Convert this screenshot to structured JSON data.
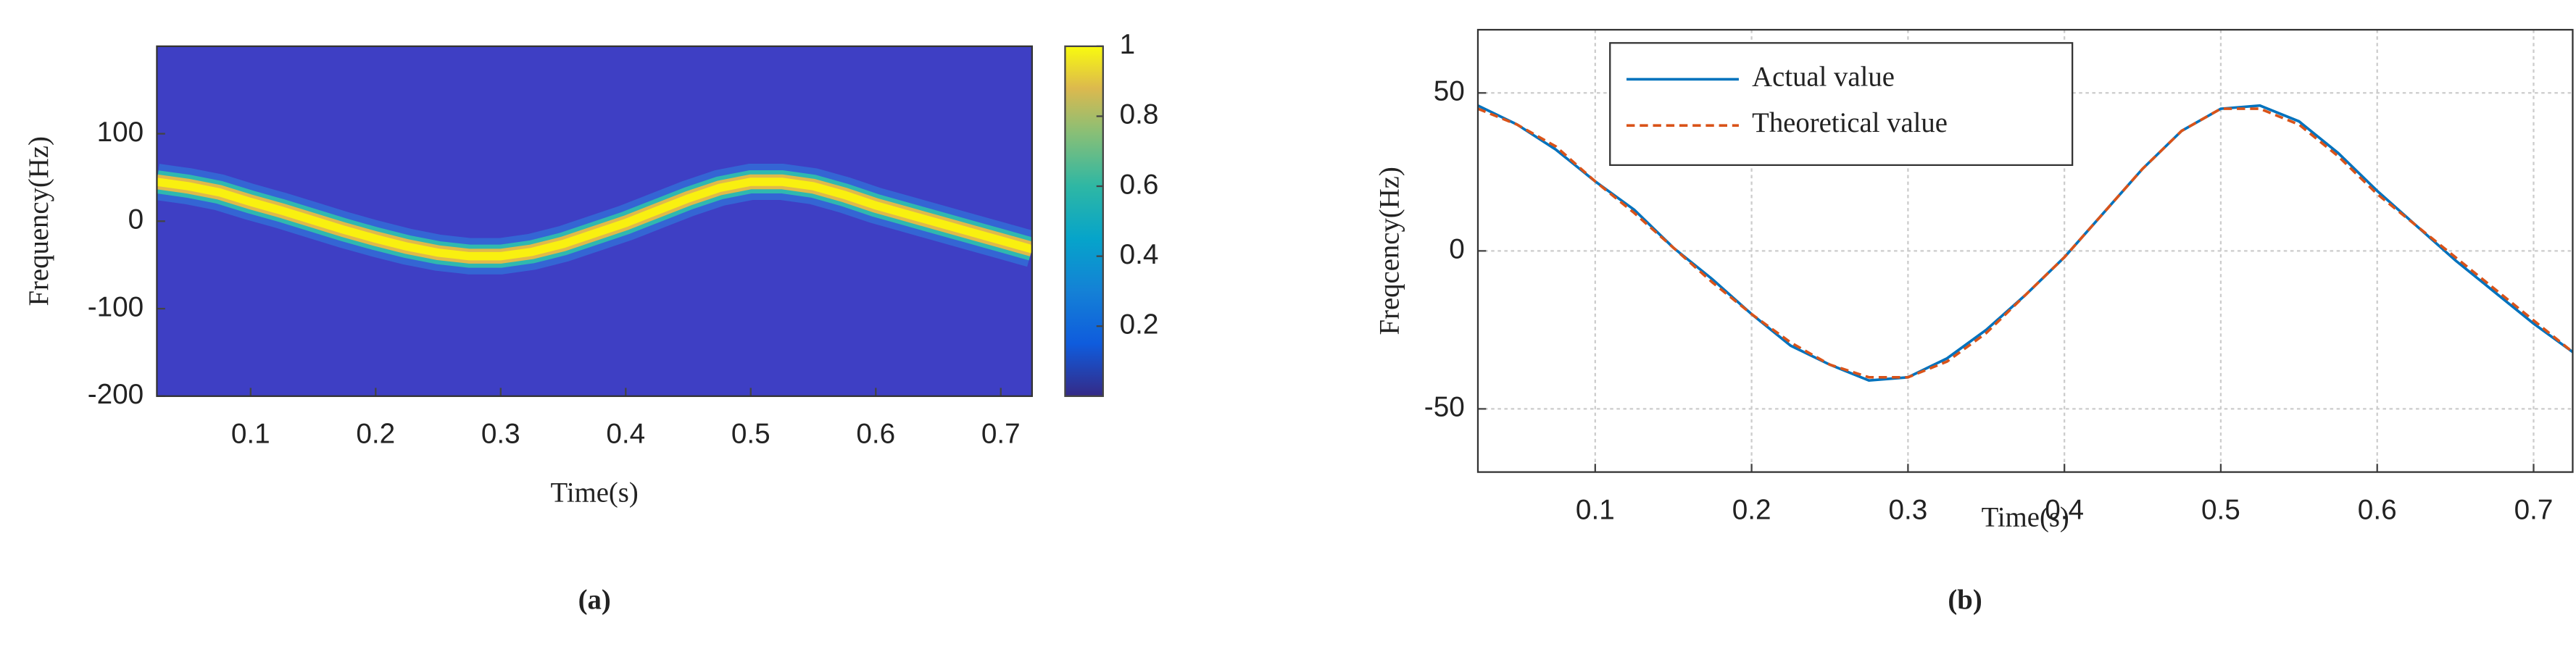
{
  "chart_data": [
    {
      "type": "heatmap",
      "label": "(a)",
      "xlabel": "Time(s)",
      "ylabel": "Frequency(Hz)",
      "x": [
        0.025,
        0.05,
        0.075,
        0.1,
        0.125,
        0.15,
        0.175,
        0.2,
        0.225,
        0.25,
        0.275,
        0.3,
        0.325,
        0.35,
        0.375,
        0.4,
        0.425,
        0.45,
        0.475,
        0.5,
        0.525,
        0.55,
        0.575,
        0.6,
        0.625,
        0.65,
        0.675,
        0.7,
        0.725
      ],
      "values": [
        45,
        40,
        33,
        22,
        12,
        1,
        -10,
        -20,
        -29,
        -36,
        -40,
        -40,
        -35,
        -26,
        -14,
        -2,
        12,
        26,
        38,
        45,
        45,
        40,
        30,
        18,
        8,
        -2,
        -12,
        -22,
        -32
      ],
      "xlim": [
        0.025,
        0.725
      ],
      "ylim": [
        -200,
        200
      ],
      "xticks": [
        0.1,
        0.2,
        0.3,
        0.4,
        0.5,
        0.6,
        0.7
      ],
      "yticks": [
        -200,
        -100,
        0,
        100
      ],
      "clim": [
        0,
        1
      ],
      "cticks": [
        0.2,
        0.4,
        0.6,
        0.8,
        1
      ]
    },
    {
      "type": "line",
      "label": "(b)",
      "xlabel": "Time(s)",
      "ylabel": "Freqcency(Hz)",
      "x": [
        0.025,
        0.05,
        0.075,
        0.1,
        0.125,
        0.15,
        0.175,
        0.2,
        0.225,
        0.25,
        0.275,
        0.3,
        0.325,
        0.35,
        0.375,
        0.4,
        0.425,
        0.45,
        0.475,
        0.5,
        0.525,
        0.55,
        0.575,
        0.6,
        0.625,
        0.65,
        0.675,
        0.7,
        0.725
      ],
      "series": [
        {
          "name": "Actual value",
          "color": "#0072bd",
          "values": [
            46,
            40,
            32,
            22,
            13,
            1,
            -9,
            -20,
            -30,
            -36,
            -41,
            -40,
            -34,
            -25,
            -14,
            -2,
            12,
            26,
            38,
            45,
            46,
            41,
            31,
            19,
            8,
            -3,
            -13,
            -23,
            -32
          ]
        },
        {
          "name": "Theoretical value",
          "color": "#d95319",
          "dashed": true,
          "values": [
            45,
            40,
            33,
            22,
            12,
            1,
            -10,
            -20,
            -29,
            -36,
            -40,
            -40,
            -35,
            -26,
            -14,
            -2,
            12,
            26,
            38,
            45,
            45,
            40,
            30,
            18,
            8,
            -2,
            -12,
            -22,
            -32
          ]
        }
      ],
      "xlim": [
        0.025,
        0.725
      ],
      "ylim": [
        -70,
        70
      ],
      "xticks": [
        0.1,
        0.2,
        0.3,
        0.4,
        0.5,
        0.6,
        0.7
      ],
      "yticks": [
        -50,
        0,
        50
      ],
      "grid": true,
      "legend": "upper left"
    }
  ]
}
